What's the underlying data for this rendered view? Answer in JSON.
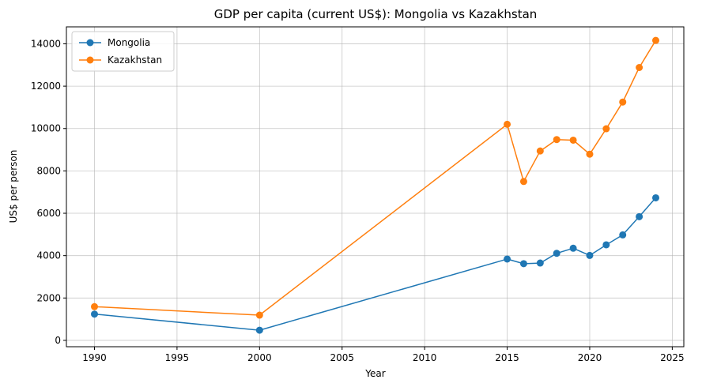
{
  "chart_data": {
    "type": "line",
    "title": "GDP per capita (current US$): Mongolia vs Kazakhstan",
    "xlabel": "Year",
    "ylabel": "US$ per person",
    "xlim": [
      1988.3,
      2025.7
    ],
    "ylim": [
      -300,
      14800
    ],
    "xticks": [
      1990,
      1995,
      2000,
      2005,
      2010,
      2015,
      2020,
      2025
    ],
    "yticks": [
      0,
      2000,
      4000,
      6000,
      8000,
      10000,
      12000,
      14000
    ],
    "grid": true,
    "legend_position": "top-left",
    "series": [
      {
        "name": "Mongolia",
        "color": "#1f77b4",
        "x": [
          1990,
          2000,
          2015,
          2016,
          2017,
          2018,
          2019,
          2020,
          2021,
          2022,
          2023,
          2024
        ],
        "y": [
          1240,
          480,
          3840,
          3620,
          3650,
          4110,
          4350,
          4010,
          4510,
          4980,
          5840,
          6730
        ]
      },
      {
        "name": "Kazakhstan",
        "color": "#ff7f0e",
        "x": [
          1990,
          2000,
          2015,
          2016,
          2017,
          2018,
          2019,
          2020,
          2021,
          2022,
          2023,
          2024
        ],
        "y": [
          1590,
          1190,
          10200,
          7500,
          8940,
          9480,
          9450,
          8790,
          9990,
          11250,
          12880,
          14160
        ]
      }
    ]
  }
}
